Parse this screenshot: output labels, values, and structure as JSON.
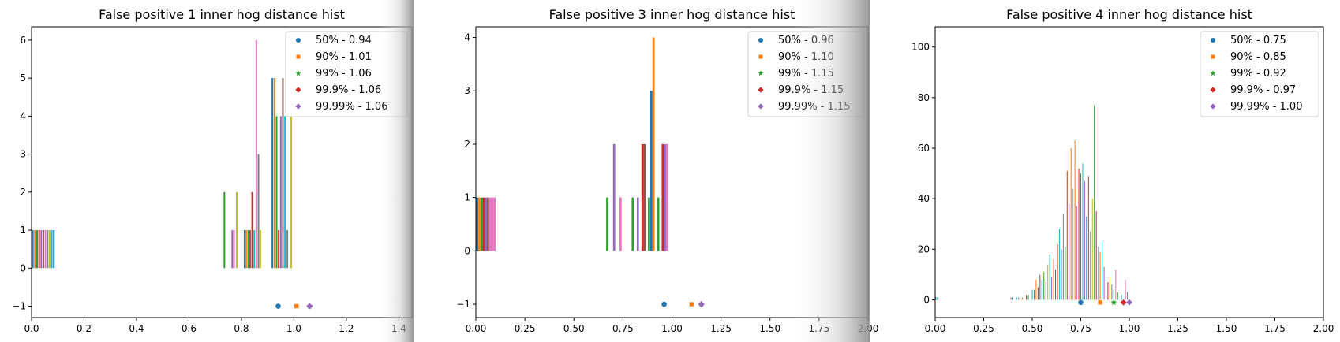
{
  "chart_data": [
    {
      "type": "bar",
      "title": "False positive 1 inner hog distance hist",
      "xlim": [
        0,
        1.45
      ],
      "ylim": [
        -1.3,
        6.35
      ],
      "xticks": [
        0.0,
        0.2,
        0.4,
        0.6,
        0.8,
        1.0,
        1.2,
        1.4
      ],
      "xtick_labels": [
        "0.0",
        "0.2",
        "0.4",
        "0.6",
        "0.8",
        "1.0",
        "1.2",
        "1.4"
      ],
      "yticks": [
        -1,
        0,
        1,
        2,
        3,
        4,
        5,
        6
      ],
      "ytick_labels": [
        "−1",
        "0",
        "1",
        "2",
        "3",
        "4",
        "5",
        "6"
      ],
      "grid": false,
      "legend_position": "top-right",
      "bar_width": 0.006,
      "bars": [
        {
          "x": 0.005,
          "h": 1,
          "c": 0
        },
        {
          "x": 0.013,
          "h": 1,
          "c": 1
        },
        {
          "x": 0.021,
          "h": 1,
          "c": 2
        },
        {
          "x": 0.029,
          "h": 1,
          "c": 3
        },
        {
          "x": 0.037,
          "h": 1,
          "c": 4
        },
        {
          "x": 0.045,
          "h": 1,
          "c": 5
        },
        {
          "x": 0.053,
          "h": 1,
          "c": 6
        },
        {
          "x": 0.061,
          "h": 1,
          "c": 7
        },
        {
          "x": 0.069,
          "h": 1,
          "c": 8
        },
        {
          "x": 0.077,
          "h": 1,
          "c": 9
        },
        {
          "x": 0.085,
          "h": 1,
          "c": 0
        },
        {
          "x": 0.735,
          "h": 2,
          "c": 2
        },
        {
          "x": 0.765,
          "h": 1,
          "c": 4
        },
        {
          "x": 0.772,
          "h": 1,
          "c": 6
        },
        {
          "x": 0.782,
          "h": 2,
          "c": 8
        },
        {
          "x": 0.812,
          "h": 1,
          "c": 0
        },
        {
          "x": 0.818,
          "h": 1,
          "c": 1
        },
        {
          "x": 0.826,
          "h": 1,
          "c": 2
        },
        {
          "x": 0.833,
          "h": 1,
          "c": 5
        },
        {
          "x": 0.841,
          "h": 2,
          "c": 3
        },
        {
          "x": 0.849,
          "h": 1,
          "c": 9
        },
        {
          "x": 0.857,
          "h": 6,
          "c": 6
        },
        {
          "x": 0.865,
          "h": 3,
          "c": 7
        },
        {
          "x": 0.872,
          "h": 1,
          "c": 8
        },
        {
          "x": 0.918,
          "h": 5,
          "c": 0
        },
        {
          "x": 0.926,
          "h": 5,
          "c": 1
        },
        {
          "x": 0.934,
          "h": 4,
          "c": 2
        },
        {
          "x": 0.942,
          "h": 1,
          "c": 3
        },
        {
          "x": 0.95,
          "h": 4,
          "c": 4
        },
        {
          "x": 0.958,
          "h": 5,
          "c": 5
        },
        {
          "x": 0.966,
          "h": 4,
          "c": 9
        },
        {
          "x": 0.975,
          "h": 1,
          "c": 7
        },
        {
          "x": 0.99,
          "h": 4,
          "c": 8
        }
      ],
      "markers": [
        {
          "x": 0.94,
          "y": -1,
          "c": 0,
          "shape": "circle"
        },
        {
          "x": 1.01,
          "y": -1,
          "c": 1,
          "shape": "square"
        },
        {
          "x": 1.06,
          "y": -1,
          "c": 2,
          "shape": "star"
        },
        {
          "x": 1.06,
          "y": -1,
          "c": 3,
          "shape": "diamond"
        },
        {
          "x": 1.06,
          "y": -1,
          "c": 4,
          "shape": "diamond"
        }
      ],
      "legend": [
        "50% - 0.94",
        "90% - 1.01",
        "99% - 1.06",
        "99.9% - 1.06",
        "99.99% - 1.06"
      ]
    },
    {
      "type": "bar",
      "title": "False positive 3 inner hog distance hist",
      "xlim": [
        0,
        2.0
      ],
      "ylim": [
        -1.25,
        4.2
      ],
      "xticks": [
        0.0,
        0.25,
        0.5,
        0.75,
        1.0,
        1.25,
        1.5,
        1.75,
        2.0
      ],
      "xtick_labels": [
        "0.00",
        "0.25",
        "0.50",
        "0.75",
        "1.00",
        "1.25",
        "1.50",
        "1.75",
        "2.00"
      ],
      "yticks": [
        -1,
        0,
        1,
        2,
        3,
        4
      ],
      "ytick_labels": [
        "−1",
        "0",
        "1",
        "2",
        "3",
        "4"
      ],
      "grid": false,
      "legend_position": "top-right",
      "bar_width": 0.011,
      "bars": [
        {
          "x": 0.007,
          "h": 1,
          "c": 0
        },
        {
          "x": 0.018,
          "h": 1,
          "c": 1
        },
        {
          "x": 0.029,
          "h": 1,
          "c": 2
        },
        {
          "x": 0.04,
          "h": 1,
          "c": 3
        },
        {
          "x": 0.051,
          "h": 1,
          "c": 4
        },
        {
          "x": 0.062,
          "h": 1,
          "c": 5
        },
        {
          "x": 0.073,
          "h": 1,
          "c": 6
        },
        {
          "x": 0.084,
          "h": 1,
          "c": 6
        },
        {
          "x": 0.095,
          "h": 1,
          "c": 6
        },
        {
          "x": 0.67,
          "h": 1,
          "c": 2
        },
        {
          "x": 0.705,
          "h": 2,
          "c": 4
        },
        {
          "x": 0.738,
          "h": 1,
          "c": 6
        },
        {
          "x": 0.8,
          "h": 1,
          "c": 2
        },
        {
          "x": 0.826,
          "h": 1,
          "c": 4
        },
        {
          "x": 0.85,
          "h": 2,
          "c": 3
        },
        {
          "x": 0.861,
          "h": 2,
          "c": 5
        },
        {
          "x": 0.883,
          "h": 1,
          "c": 2
        },
        {
          "x": 0.895,
          "h": 3,
          "c": 0
        },
        {
          "x": 0.906,
          "h": 4,
          "c": 1
        },
        {
          "x": 0.93,
          "h": 1,
          "c": 2
        },
        {
          "x": 0.953,
          "h": 2,
          "c": 3
        },
        {
          "x": 0.964,
          "h": 2,
          "c": 4
        },
        {
          "x": 0.975,
          "h": 2,
          "c": 6
        }
      ],
      "markers": [
        {
          "x": 0.96,
          "y": -1,
          "c": 0,
          "shape": "circle"
        },
        {
          "x": 1.1,
          "y": -1,
          "c": 1,
          "shape": "square"
        },
        {
          "x": 1.15,
          "y": -1,
          "c": 2,
          "shape": "star"
        },
        {
          "x": 1.15,
          "y": -1,
          "c": 3,
          "shape": "diamond"
        },
        {
          "x": 1.15,
          "y": -1,
          "c": 4,
          "shape": "diamond"
        }
      ],
      "legend": [
        "50% - 0.96",
        "90% - 1.10",
        "99% - 1.15",
        "99.9% - 1.15",
        "99.99% - 1.15"
      ]
    },
    {
      "type": "bar",
      "title": "False positive 4 inner hog distance hist",
      "xlim": [
        0,
        2.0
      ],
      "ylim": [
        -7,
        108
      ],
      "xticks": [
        0.0,
        0.25,
        0.5,
        0.75,
        1.0,
        1.25,
        1.5,
        1.75,
        2.0
      ],
      "xtick_labels": [
        "0.00",
        "0.25",
        "0.50",
        "0.75",
        "1.00",
        "1.25",
        "1.50",
        "1.75",
        "2.00"
      ],
      "yticks": [
        0,
        20,
        40,
        60,
        80,
        100
      ],
      "ytick_labels": [
        "0",
        "20",
        "40",
        "60",
        "80",
        "100"
      ],
      "grid": false,
      "legend_position": "top-right",
      "bar_width": 0.0042,
      "bars": [
        {
          "x": 0.003,
          "h": 1,
          "c": 0
        },
        {
          "x": 0.009,
          "h": 1,
          "c": 9
        },
        {
          "x": 0.015,
          "h": 1,
          "c": 7
        },
        {
          "x": 0.39,
          "h": 1,
          "c": 7
        },
        {
          "x": 0.4,
          "h": 1,
          "c": 0
        },
        {
          "x": 0.42,
          "h": 1,
          "c": 9
        },
        {
          "x": 0.43,
          "h": 1,
          "c": 7
        },
        {
          "x": 0.45,
          "h": 1,
          "c": 1
        },
        {
          "x": 0.47,
          "h": 2,
          "c": 5
        },
        {
          "x": 0.48,
          "h": 2,
          "c": 2
        },
        {
          "x": 0.5,
          "h": 4,
          "c": 9
        },
        {
          "x": 0.51,
          "h": 4,
          "c": 7
        },
        {
          "x": 0.52,
          "h": 8,
          "c": 1
        },
        {
          "x": 0.53,
          "h": 5,
          "c": 3
        },
        {
          "x": 0.54,
          "h": 10,
          "c": 5
        },
        {
          "x": 0.55,
          "h": 8,
          "c": 0
        },
        {
          "x": 0.56,
          "h": 11,
          "c": 2
        },
        {
          "x": 0.57,
          "h": 7,
          "c": 6
        },
        {
          "x": 0.58,
          "h": 14,
          "c": 8
        },
        {
          "x": 0.59,
          "h": 18,
          "c": 9
        },
        {
          "x": 0.6,
          "h": 9,
          "c": 4
        },
        {
          "x": 0.61,
          "h": 16,
          "c": 1
        },
        {
          "x": 0.62,
          "h": 12,
          "c": 5
        },
        {
          "x": 0.63,
          "h": 22,
          "c": 3
        },
        {
          "x": 0.64,
          "h": 28,
          "c": 9
        },
        {
          "x": 0.65,
          "h": 20,
          "c": 0
        },
        {
          "x": 0.66,
          "h": 34,
          "c": 7
        },
        {
          "x": 0.67,
          "h": 21,
          "c": 2
        },
        {
          "x": 0.68,
          "h": 51,
          "c": 5
        },
        {
          "x": 0.69,
          "h": 38,
          "c": 4
        },
        {
          "x": 0.7,
          "h": 60,
          "c": 1
        },
        {
          "x": 0.71,
          "h": 44,
          "c": 8
        },
        {
          "x": 0.72,
          "h": 63,
          "c": 1
        },
        {
          "x": 0.73,
          "h": 37,
          "c": 6
        },
        {
          "x": 0.74,
          "h": 52,
          "c": 3
        },
        {
          "x": 0.75,
          "h": 50,
          "c": 2
        },
        {
          "x": 0.76,
          "h": 54,
          "c": 9
        },
        {
          "x": 0.77,
          "h": 47,
          "c": 4
        },
        {
          "x": 0.78,
          "h": 33,
          "c": 0
        },
        {
          "x": 0.79,
          "h": 49,
          "c": 5
        },
        {
          "x": 0.8,
          "h": 27,
          "c": 7
        },
        {
          "x": 0.81,
          "h": 40,
          "c": 8
        },
        {
          "x": 0.82,
          "h": 77,
          "c": 2
        },
        {
          "x": 0.83,
          "h": 35,
          "c": 3
        },
        {
          "x": 0.84,
          "h": 21,
          "c": 6
        },
        {
          "x": 0.85,
          "h": 19,
          "c": 1
        },
        {
          "x": 0.86,
          "h": 23,
          "c": 9
        },
        {
          "x": 0.87,
          "h": 13,
          "c": 4
        },
        {
          "x": 0.88,
          "h": 8,
          "c": 5
        },
        {
          "x": 0.89,
          "h": 7,
          "c": 3
        },
        {
          "x": 0.9,
          "h": 9,
          "c": 8
        },
        {
          "x": 0.91,
          "h": 6,
          "c": 7
        },
        {
          "x": 0.92,
          "h": 4,
          "c": 0
        },
        {
          "x": 0.93,
          "h": 12,
          "c": 6
        },
        {
          "x": 0.94,
          "h": 3,
          "c": 2
        },
        {
          "x": 0.96,
          "h": 2,
          "c": 9
        },
        {
          "x": 0.98,
          "h": 8,
          "c": 6
        },
        {
          "x": 0.99,
          "h": 3,
          "c": 7
        }
      ],
      "markers": [
        {
          "x": 0.75,
          "y": -1,
          "c": 0,
          "shape": "circle"
        },
        {
          "x": 0.85,
          "y": -1,
          "c": 1,
          "shape": "square"
        },
        {
          "x": 0.92,
          "y": -1,
          "c": 2,
          "shape": "star"
        },
        {
          "x": 0.97,
          "y": -1,
          "c": 3,
          "shape": "diamond"
        },
        {
          "x": 1.0,
          "y": -1,
          "c": 4,
          "shape": "diamond"
        }
      ],
      "legend": [
        "50% - 0.75",
        "90% - 0.85",
        "99% - 0.92",
        "99.9% - 0.97",
        "99.99% - 1.00"
      ]
    }
  ],
  "palette": [
    "#1f77b4",
    "#ff7f0e",
    "#2ca02c",
    "#d62728",
    "#9467bd",
    "#8c564b",
    "#e377c2",
    "#7f7f7f",
    "#bcbd22",
    "#17becf"
  ],
  "legend_shapes": [
    "circle",
    "square",
    "star",
    "diamond",
    "diamond"
  ]
}
